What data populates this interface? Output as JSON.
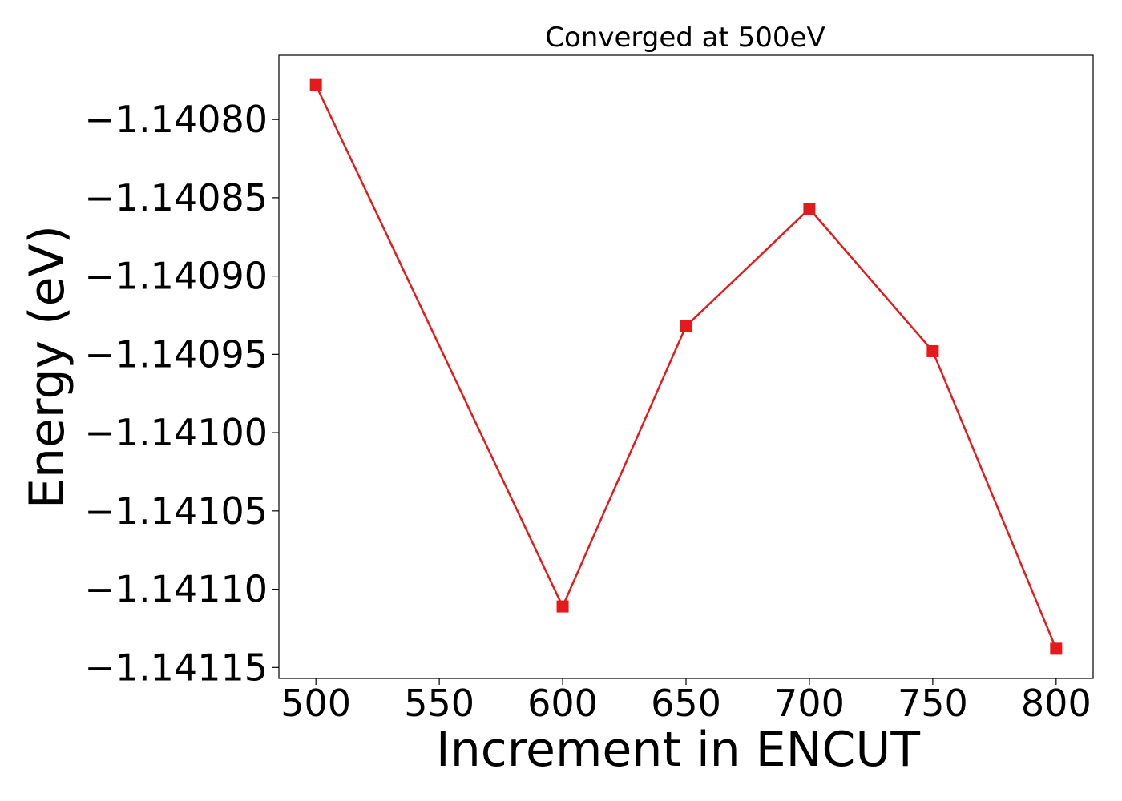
{
  "chart_data": {
    "type": "line",
    "title": "Converged at 500eV",
    "xlabel": "Increment in ENCUT",
    "ylabel": "Energy (eV)",
    "x": [
      500,
      600,
      650,
      700,
      750,
      800
    ],
    "series": [
      {
        "values": [
          -1.140778,
          -1.141111,
          -1.140932,
          -1.140857,
          -1.140948,
          -1.141138
        ]
      }
    ],
    "xlim": [
      485,
      815
    ],
    "ylim": [
      -1.141157,
      -1.140759
    ],
    "xticks": [
      500,
      550,
      600,
      650,
      700,
      750,
      800
    ],
    "xtick_labels": [
      "500",
      "550",
      "600",
      "650",
      "700",
      "750",
      "800"
    ],
    "yticks": [
      -1.1408,
      -1.14085,
      -1.1409,
      -1.14095,
      -1.141,
      -1.14105,
      -1.1411,
      -1.14115
    ],
    "ytick_labels": [
      "−1.14080",
      "−1.14085",
      "−1.14090",
      "−1.14095",
      "−1.14100",
      "−1.14105",
      "−1.14110",
      "−1.14115"
    ],
    "grid": false,
    "legend": "none",
    "line_color": "#e41a1c",
    "marker": "square"
  }
}
